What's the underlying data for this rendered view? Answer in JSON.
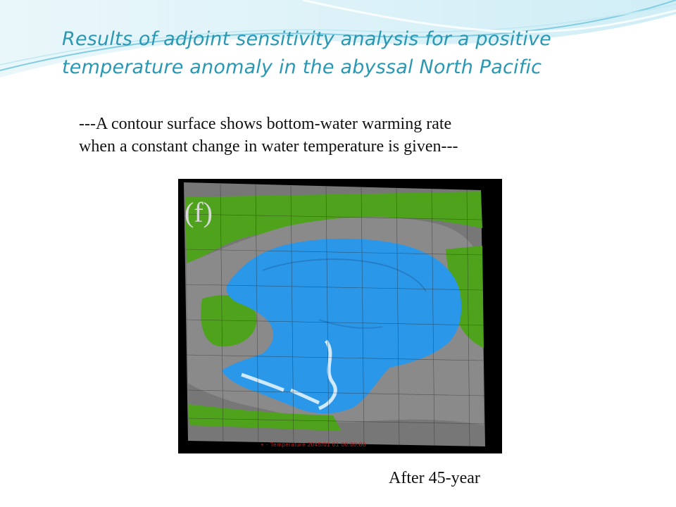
{
  "slide": {
    "title_line1": "Results of adjoint sensitivity analysis for a positive",
    "title_line2": "temperature anomaly in the abyssal North Pacific",
    "subtitle_line1": "---A contour surface shows bottom-water warming rate",
    "subtitle_line2": "when a constant change in water temperature is given---",
    "caption": "After 45-year"
  },
  "figure": {
    "panel_label": "(f)",
    "footer_text": "+ - Temperature 2045/01 01 00:00:00",
    "colors": {
      "ocean_surface": "#2B97E8",
      "land": "#4FA31C",
      "seafloor": "#8A8A8A",
      "background": "#000000"
    }
  },
  "theme": {
    "accent": "#2A98B2",
    "wave": "#9ED9E8"
  }
}
